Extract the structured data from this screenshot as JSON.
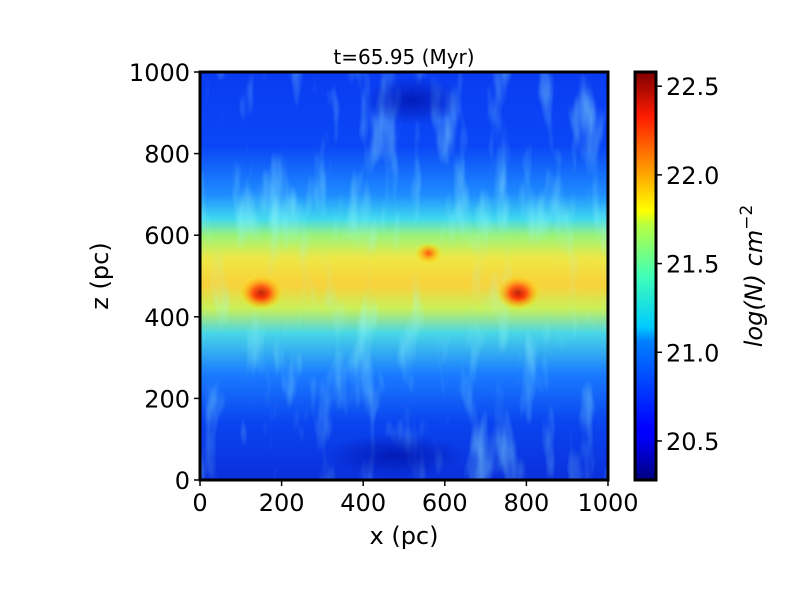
{
  "chart_data": {
    "type": "heatmap",
    "title": "t=65.95 (Myr)",
    "xlabel": "x (pc)",
    "ylabel": "z (pc)",
    "xlim": [
      0,
      1000
    ],
    "ylim": [
      0,
      1000
    ],
    "x_ticks": [
      "0",
      "200",
      "400",
      "600",
      "800",
      "1000"
    ],
    "y_ticks": [
      "0",
      "200",
      "400",
      "600",
      "800",
      "1000"
    ],
    "colorbar": {
      "label": "log(N) cm",
      "label_exponent": "−2",
      "range": [
        20.28,
        22.58
      ],
      "ticks": [
        "20.5",
        "21.0",
        "21.5",
        "22.0",
        "22.5"
      ],
      "colormap": "jet"
    },
    "features": [
      {
        "kind": "dense clump",
        "x": 150,
        "z": 460,
        "log_N": 22.5
      },
      {
        "kind": "dense clump",
        "x": 780,
        "z": 460,
        "log_N": 22.4
      },
      {
        "kind": "dense clump",
        "x": 560,
        "z": 555,
        "log_N": 22.0
      },
      {
        "kind": "disk midplane band",
        "z_center": 510,
        "z_halfwidth": 90,
        "log_N": 21.5
      }
    ]
  }
}
